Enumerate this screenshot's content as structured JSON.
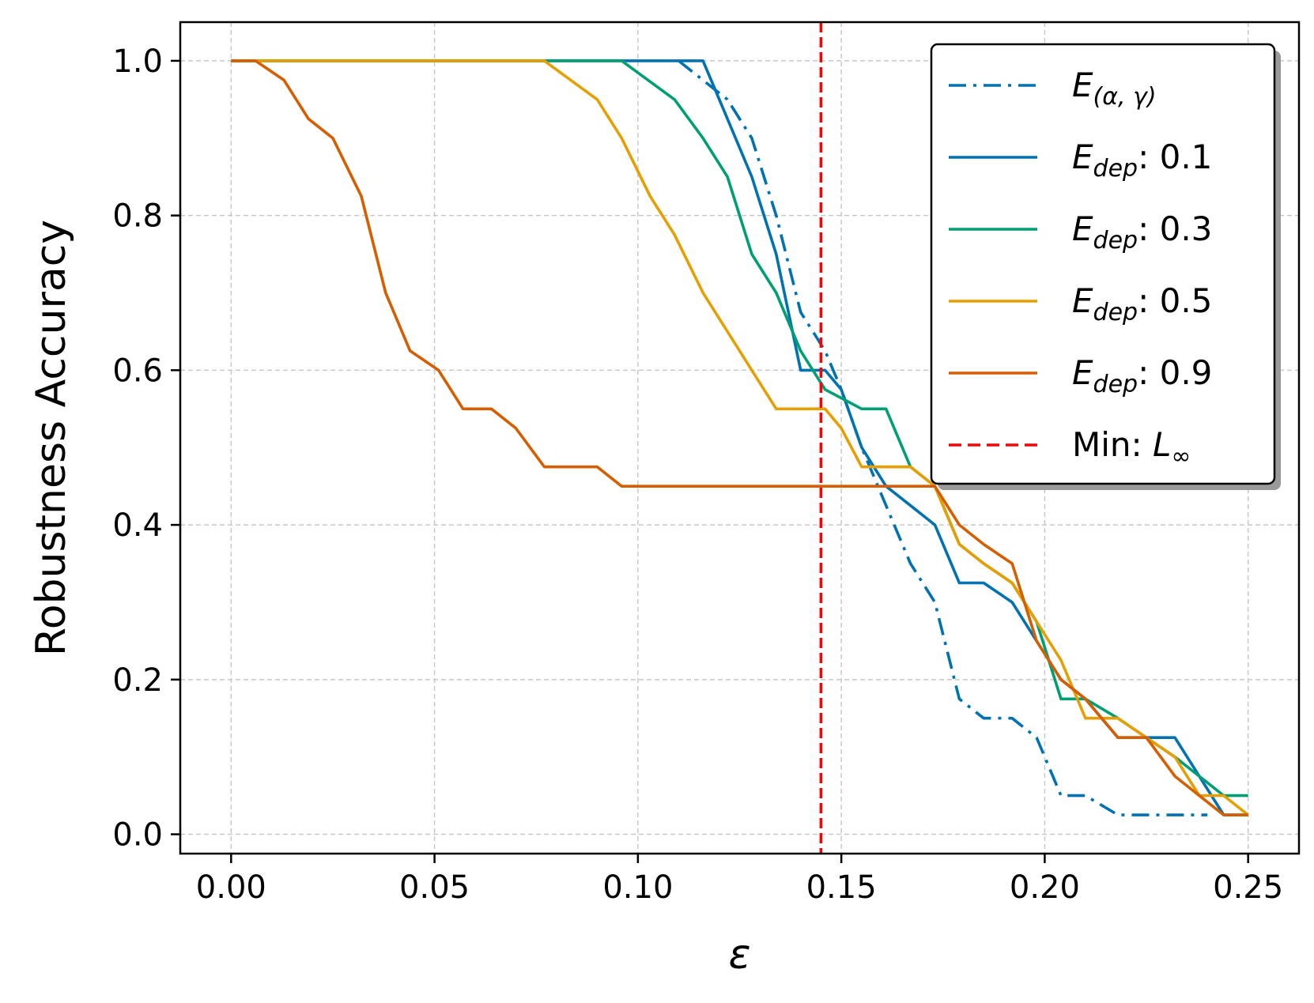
{
  "chart_data": {
    "type": "line",
    "title": "",
    "xlabel": "ε",
    "ylabel": "Robustness Accuracy",
    "xlim": [
      -0.0125,
      0.2625
    ],
    "ylim": [
      -0.025,
      1.05
    ],
    "xticks": [
      0.0,
      0.05,
      0.1,
      0.15,
      0.2,
      0.25
    ],
    "xtick_labels": [
      "0.00",
      "0.05",
      "0.10",
      "0.15",
      "0.20",
      "0.25"
    ],
    "yticks": [
      0.0,
      0.2,
      0.4,
      0.6,
      0.8,
      1.0
    ],
    "ytick_labels": [
      "0.0",
      "0.2",
      "0.4",
      "0.6",
      "0.8",
      "1.0"
    ],
    "grid": true,
    "legend_position": "upper right",
    "vline": {
      "x": 0.145,
      "color": "#ff0000",
      "label_main": "Min: ",
      "label_italic": "L",
      "label_sub": "∞"
    },
    "series": [
      {
        "name": "E(α, γ)",
        "label_main": "E",
        "label_sub": "(α, γ)",
        "label_value": "",
        "color": "#0072b2",
        "style": "dashdot",
        "x": [
          0.11,
          0.122,
          0.128,
          0.134,
          0.14,
          0.146,
          0.15,
          0.155,
          0.161,
          0.167,
          0.173,
          0.179,
          0.185,
          0.192,
          0.198,
          0.204,
          0.21,
          0.218,
          0.225,
          0.232,
          0.24
        ],
        "y": [
          1.0,
          0.95,
          0.9,
          0.8,
          0.675,
          0.625,
          0.575,
          0.5,
          0.425,
          0.35,
          0.3,
          0.175,
          0.15,
          0.15,
          0.125,
          0.05,
          0.05,
          0.025,
          0.025,
          0.025,
          0.025
        ]
      },
      {
        "name": "Edep: 0.1",
        "label_main": "E",
        "label_sub": "dep",
        "label_value": ": 0.1",
        "color": "#0072b2",
        "style": "solid",
        "x": [
          0.0,
          0.11,
          0.116,
          0.122,
          0.128,
          0.134,
          0.14,
          0.146,
          0.15,
          0.155,
          0.161,
          0.167,
          0.173,
          0.179,
          0.185,
          0.192,
          0.198,
          0.204,
          0.21,
          0.218,
          0.225,
          0.232,
          0.238,
          0.244,
          0.25
        ],
        "y": [
          1.0,
          1.0,
          1.0,
          0.925,
          0.85,
          0.75,
          0.6,
          0.6,
          0.575,
          0.5,
          0.45,
          0.425,
          0.4,
          0.325,
          0.325,
          0.3,
          0.25,
          0.2,
          0.175,
          0.125,
          0.125,
          0.125,
          0.075,
          0.025,
          0.025
        ]
      },
      {
        "name": "Edep: 0.3",
        "label_main": "E",
        "label_sub": "dep",
        "label_value": ": 0.3",
        "color": "#009e73",
        "style": "solid",
        "x": [
          0.0,
          0.096,
          0.109,
          0.116,
          0.122,
          0.128,
          0.134,
          0.14,
          0.146,
          0.155,
          0.161,
          0.167,
          0.173,
          0.179,
          0.185,
          0.192,
          0.198,
          0.204,
          0.21,
          0.218,
          0.225,
          0.232,
          0.238,
          0.244,
          0.25
        ],
        "y": [
          1.0,
          1.0,
          0.95,
          0.9,
          0.85,
          0.75,
          0.7,
          0.625,
          0.575,
          0.55,
          0.55,
          0.475,
          0.45,
          0.375,
          0.35,
          0.325,
          0.275,
          0.175,
          0.175,
          0.15,
          0.125,
          0.1,
          0.075,
          0.05,
          0.05
        ]
      },
      {
        "name": "Edep: 0.5",
        "label_main": "E",
        "label_sub": "dep",
        "label_value": ": 0.5",
        "color": "#e69f00",
        "style": "solid",
        "x": [
          0.0,
          0.077,
          0.09,
          0.096,
          0.103,
          0.109,
          0.116,
          0.122,
          0.128,
          0.134,
          0.14,
          0.146,
          0.15,
          0.155,
          0.161,
          0.167,
          0.173,
          0.179,
          0.185,
          0.192,
          0.198,
          0.204,
          0.21,
          0.218,
          0.225,
          0.232,
          0.238,
          0.244,
          0.25
        ],
        "y": [
          1.0,
          1.0,
          0.95,
          0.9,
          0.825,
          0.775,
          0.7,
          0.65,
          0.6,
          0.55,
          0.55,
          0.55,
          0.525,
          0.475,
          0.475,
          0.475,
          0.45,
          0.375,
          0.35,
          0.325,
          0.275,
          0.225,
          0.15,
          0.15,
          0.125,
          0.1,
          0.05,
          0.05,
          0.025
        ]
      },
      {
        "name": "Edep: 0.9",
        "label_main": "E",
        "label_sub": "dep",
        "label_value": ": 0.9",
        "color": "#d55e00",
        "style": "solid",
        "x": [
          0.0,
          0.006,
          0.013,
          0.019,
          0.025,
          0.032,
          0.038,
          0.044,
          0.051,
          0.057,
          0.064,
          0.07,
          0.077,
          0.09,
          0.096,
          0.109,
          0.122,
          0.14,
          0.155,
          0.167,
          0.173,
          0.179,
          0.185,
          0.192,
          0.198,
          0.204,
          0.21,
          0.218,
          0.225,
          0.232,
          0.238,
          0.244,
          0.25
        ],
        "y": [
          1.0,
          1.0,
          0.975,
          0.925,
          0.9,
          0.825,
          0.7,
          0.625,
          0.6,
          0.55,
          0.55,
          0.525,
          0.475,
          0.475,
          0.45,
          0.45,
          0.45,
          0.45,
          0.45,
          0.45,
          0.45,
          0.4,
          0.375,
          0.35,
          0.25,
          0.2,
          0.175,
          0.125,
          0.125,
          0.075,
          0.05,
          0.025,
          0.025
        ]
      }
    ]
  }
}
